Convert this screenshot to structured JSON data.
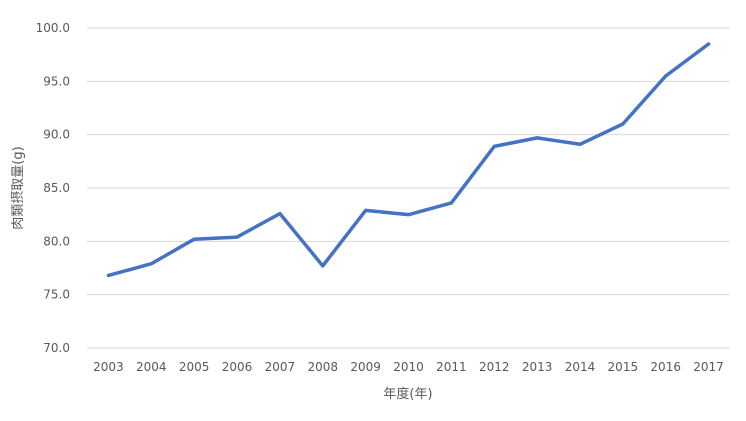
{
  "chart_data": {
    "type": "line",
    "title": "",
    "xlabel": "年度(年)",
    "ylabel": "肉類摂取量(g)",
    "categories": [
      "2003",
      "2004",
      "2005",
      "2006",
      "2007",
      "2008",
      "2009",
      "2010",
      "2011",
      "2012",
      "2013",
      "2014",
      "2015",
      "2016",
      "2017"
    ],
    "series": [
      {
        "values": [
          76.8,
          77.9,
          80.2,
          80.4,
          82.6,
          77.7,
          82.9,
          82.5,
          83.6,
          88.9,
          89.7,
          89.1,
          91.0,
          95.5,
          98.5
        ],
        "color": "#4472C4"
      }
    ],
    "ylim": [
      70.0,
      100.0
    ],
    "yticks": [
      "70.0",
      "75.0",
      "80.0",
      "85.0",
      "90.0",
      "95.0",
      "100.0"
    ],
    "grid": true,
    "legend": "none",
    "gridline_color": "#D9D9D9"
  }
}
